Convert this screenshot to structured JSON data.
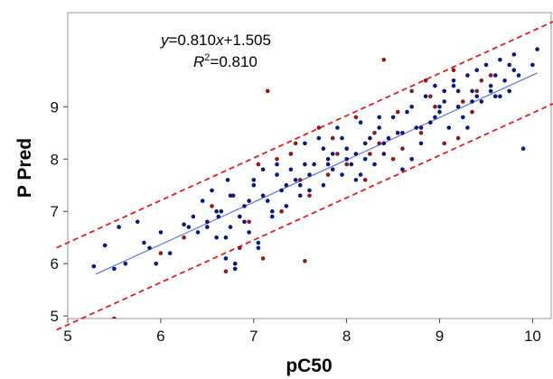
{
  "chart_data": {
    "type": "scatter",
    "xlabel": "pC50",
    "ylabel": "P Pred",
    "xlim": [
      5,
      10.2
    ],
    "ylim": [
      4.95,
      10.8
    ],
    "x_ticks": [
      "5",
      "6",
      "7",
      "8",
      "9",
      "10"
    ],
    "y_ticks": [
      "5",
      "6",
      "7",
      "8",
      "9"
    ],
    "grid": false,
    "annotation": {
      "y_var": "y",
      "equation_rest": "=0.810",
      "x_var": "x",
      "intercept": "+1.505",
      "r_label": "R",
      "r_power": "2",
      "r_value": "=0.810"
    },
    "fit_line": {
      "slope": 0.81,
      "intercept": 1.505,
      "x_range": [
        5.3,
        10.05
      ],
      "color": "#6f7fd8"
    },
    "bounds": [
      {
        "slope": 0.81,
        "intercept": 2.35,
        "color": "#e02020"
      },
      {
        "slope": 0.81,
        "intercept": 0.78,
        "color": "#e02020"
      }
    ],
    "colors": {
      "series_a": "#0a1a7a",
      "series_b": "#8b1a1a",
      "frame": "#aaaaaa"
    },
    "series": [
      {
        "color": "#0a1a7a",
        "x": [
          5.28,
          5.4,
          5.5,
          5.55,
          5.62,
          5.75,
          5.82,
          5.88,
          6.0,
          6.1,
          6.25,
          6.35,
          6.45,
          6.5,
          6.55,
          6.6,
          6.65,
          6.7,
          6.72,
          6.75,
          6.78,
          6.8,
          6.85,
          6.9,
          6.95,
          7.0,
          7.05,
          7.1,
          7.15,
          7.2,
          7.25,
          7.3,
          7.35,
          7.4,
          7.45,
          7.5,
          7.55,
          7.6,
          7.65,
          7.7,
          7.75,
          7.8,
          7.85,
          7.9,
          7.95,
          8.0,
          8.05,
          8.1,
          8.15,
          8.2,
          8.25,
          8.3,
          8.35,
          8.4,
          8.5,
          8.55,
          8.6,
          8.7,
          8.75,
          8.8,
          8.85,
          8.9,
          8.95,
          9.0,
          9.05,
          9.1,
          9.15,
          9.2,
          9.25,
          9.3,
          9.35,
          9.4,
          9.45,
          9.5,
          9.55,
          9.6,
          9.65,
          9.7,
          9.75,
          9.8,
          9.85,
          9.9,
          10.0,
          10.05,
          6.6,
          6.7,
          6.75,
          6.9,
          7.0,
          7.2,
          7.4,
          7.6,
          7.8,
          8.0,
          8.2,
          8.4,
          8.6,
          8.8,
          9.0,
          9.2,
          9.4,
          9.6,
          9.8,
          6.5,
          6.85,
          7.1,
          7.35,
          7.55,
          7.75,
          7.95,
          8.15,
          8.45,
          8.65,
          8.95,
          9.15,
          9.35,
          9.55,
          9.75,
          6.4,
          6.95,
          7.25,
          7.5,
          7.85,
          8.1,
          8.35,
          8.7,
          9.05,
          9.3,
          9.65,
          5.95,
          6.3,
          6.62,
          6.8,
          7.05
        ],
        "y": [
          5.95,
          6.35,
          5.9,
          6.7,
          6.0,
          6.8,
          6.4,
          6.3,
          6.6,
          6.2,
          6.75,
          6.9,
          7.2,
          6.8,
          7.4,
          6.5,
          7.0,
          6.1,
          7.6,
          6.7,
          7.3,
          6.0,
          6.9,
          7.1,
          6.6,
          7.5,
          6.3,
          7.8,
          7.2,
          6.9,
          7.9,
          7.4,
          7.1,
          8.1,
          7.6,
          7.3,
          8.3,
          7.7,
          7.9,
          8.4,
          7.5,
          8.0,
          7.8,
          8.6,
          7.7,
          8.2,
          7.9,
          8.1,
          8.7,
          8.0,
          8.4,
          7.9,
          8.6,
          8.3,
          8.8,
          8.5,
          7.8,
          9.0,
          8.6,
          8.3,
          9.2,
          8.7,
          9.4,
          8.9,
          9.1,
          8.6,
          9.5,
          9.0,
          8.8,
          9.6,
          9.3,
          9.7,
          9.1,
          9.8,
          9.4,
          9.2,
          9.9,
          9.5,
          9.3,
          10.0,
          9.6,
          8.2,
          9.8,
          10.1,
          7.0,
          6.5,
          7.3,
          6.8,
          7.6,
          7.0,
          7.8,
          7.4,
          7.9,
          8.0,
          8.3,
          8.1,
          8.5,
          8.6,
          9.0,
          9.3,
          9.2,
          9.6,
          9.7,
          6.7,
          6.9,
          7.3,
          7.5,
          7.9,
          8.2,
          8.4,
          7.7,
          8.4,
          8.9,
          8.8,
          9.4,
          9.1,
          9.3,
          9.8,
          6.6,
          7.2,
          7.7,
          7.5,
          8.1,
          7.6,
          8.8,
          8.0,
          9.3,
          8.6,
          9.2,
          6.0,
          6.7,
          6.9,
          5.9,
          6.4
        ]
      },
      {
        "color": "#8b1a1a",
        "x": [
          6.0,
          6.25,
          6.55,
          6.7,
          6.95,
          7.05,
          7.15,
          7.3,
          7.45,
          7.5,
          7.6,
          7.7,
          7.8,
          7.9,
          8.0,
          8.1,
          8.2,
          8.3,
          8.4,
          8.5,
          8.6,
          8.7,
          8.8,
          8.85,
          8.95,
          9.05,
          9.15,
          9.25,
          9.35,
          9.45,
          9.55,
          6.85,
          7.25,
          7.55,
          7.85,
          8.25,
          8.55,
          8.9,
          9.2,
          9.4,
          7.4,
          8.35,
          5.5,
          7.1
        ],
        "y": [
          6.2,
          6.5,
          7.1,
          5.85,
          6.8,
          7.9,
          9.3,
          7.0,
          8.3,
          7.6,
          7.3,
          8.6,
          7.7,
          8.1,
          7.9,
          8.8,
          7.6,
          8.5,
          9.9,
          8.0,
          8.2,
          9.3,
          8.5,
          9.5,
          9.0,
          8.3,
          9.7,
          9.1,
          8.9,
          9.5,
          9.6,
          6.3,
          8.0,
          6.05,
          8.4,
          8.1,
          8.9,
          9.2,
          8.4,
          9.3,
          8.1,
          8.3,
          4.95,
          6.1
        ]
      }
    ]
  }
}
